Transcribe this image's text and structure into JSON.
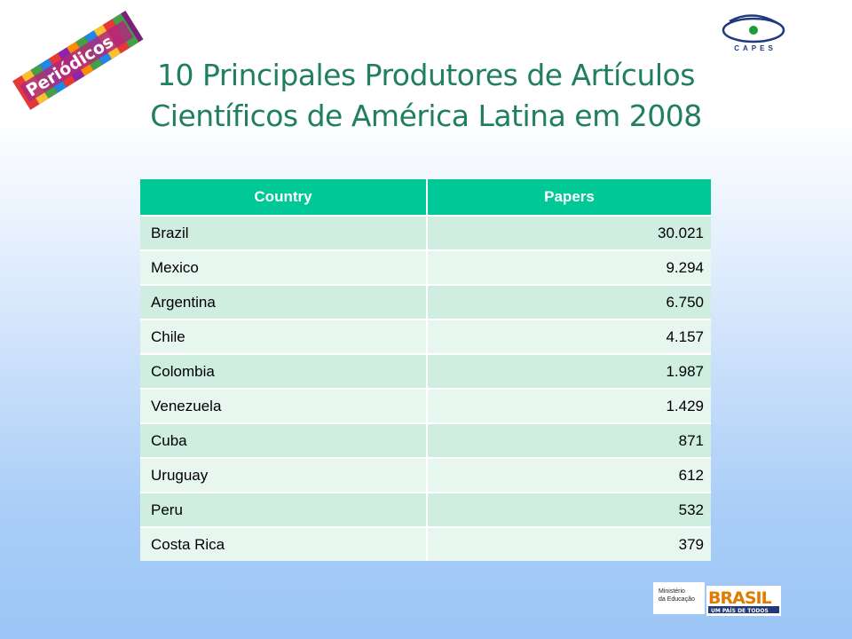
{
  "title_line1": "10 Principales Produtores de Artículos",
  "title_line2": "Científicos de América Latina em 2008",
  "logos": {
    "periodicos": "Periódicos",
    "capes": "CAPES",
    "ministerio_line1": "Ministério",
    "ministerio_line2": "da Educação",
    "brasil": "BRASIL",
    "brasil_slogan": "UM PAÍS DE TODOS"
  },
  "table": {
    "headers": [
      "Country",
      "Papers"
    ],
    "rows": [
      {
        "country": "Brazil",
        "papers": "30.021"
      },
      {
        "country": "Mexico",
        "papers": "9.294"
      },
      {
        "country": "Argentina",
        "papers": "6.750"
      },
      {
        "country": "Chile",
        "papers": "4.157"
      },
      {
        "country": "Colombia",
        "papers": "1.987"
      },
      {
        "country": "Venezuela",
        "papers": "1.429"
      },
      {
        "country": "Cuba",
        "papers": "871"
      },
      {
        "country": "Uruguay",
        "papers": "612"
      },
      {
        "country": "Peru",
        "papers": "532"
      },
      {
        "country": "Costa Rica",
        "papers": "379"
      }
    ]
  },
  "colors": {
    "title": "#1f7f5f",
    "header_bg": "#00c896",
    "row_odd": "#cfeee1",
    "row_even": "#e8f6f0"
  }
}
